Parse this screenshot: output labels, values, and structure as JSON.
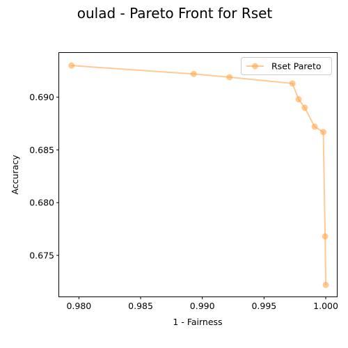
{
  "chart_data": {
    "type": "line",
    "title": "oulad - Pareto Front for Rset",
    "xlabel": "1 - Fairness",
    "ylabel": "Accuracy",
    "xlim": [
      0.9784,
      1.0009
    ],
    "ylim": [
      0.6711,
      0.6942
    ],
    "xticks": [
      0.98,
      0.985,
      0.99,
      0.995,
      1.0
    ],
    "xtick_labels": [
      "0.980",
      "0.985",
      "0.990",
      "0.995",
      "1.000"
    ],
    "yticks": [
      0.675,
      0.68,
      0.685,
      0.69
    ],
    "ytick_labels": [
      "0.675",
      "0.680",
      "0.685",
      "0.690"
    ],
    "grid": false,
    "legend_position": "top-right",
    "series": [
      {
        "name": "Rset Pareto",
        "color": "#ffa64d",
        "marker": "circle",
        "x": [
          0.9794,
          0.9893,
          0.9922,
          0.9973,
          0.9978,
          0.9983,
          0.9991,
          0.9998,
          0.99995,
          1.0
        ],
        "y": [
          0.693,
          0.6922,
          0.6919,
          0.6913,
          0.6898,
          0.689,
          0.6872,
          0.6867,
          0.6768,
          0.6722
        ]
      }
    ]
  }
}
